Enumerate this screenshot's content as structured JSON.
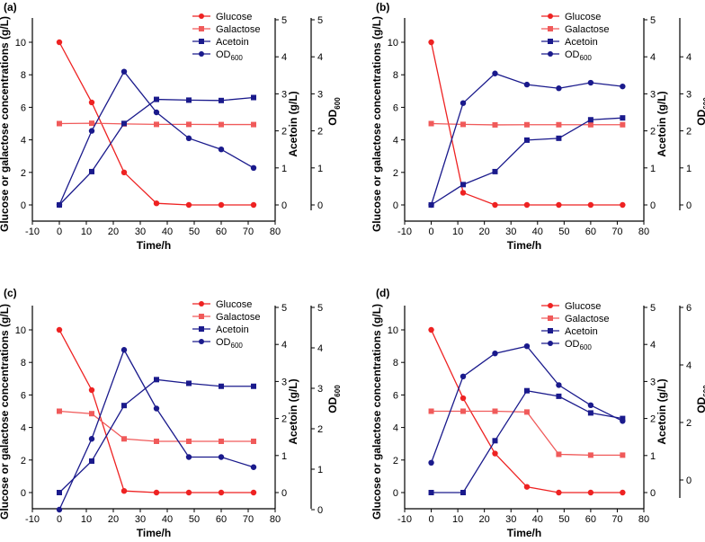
{
  "colors": {
    "red": "#ee2222",
    "pink": "#f05a5a",
    "blue": "#1a1a8c",
    "axis": "#000000"
  },
  "common": {
    "xlabel": "Time/h",
    "ylabel": "Glucose or galactose concentrations (g/L)",
    "acetoin_label": "Acetoin (g/L)",
    "od_label_main": "OD",
    "od_label_sub": "600",
    "legend": [
      "Glucose",
      "Galactose",
      "Acetoin",
      "OD"
    ],
    "legend_od_sub": "600",
    "x_ticks": [
      -10,
      0,
      10,
      20,
      30,
      40,
      50,
      60,
      70,
      80
    ],
    "left_ticks": [
      0,
      2,
      4,
      6,
      8,
      10
    ],
    "acetoin_ticks": [
      0,
      1,
      2,
      3,
      4,
      5
    ]
  },
  "chart_data": [
    {
      "type": "line",
      "panel": "(a)",
      "x": [
        0,
        12,
        24,
        36,
        48,
        60,
        72
      ],
      "xlim": [
        -10,
        80
      ],
      "ylim_left": [
        -0.8,
        11
      ],
      "ylim_acetoin": [
        -0.36,
        4.95
      ],
      "ylim_od": [
        -0.36,
        4.95
      ],
      "od_ticks": [
        0,
        1,
        2,
        3,
        4,
        5
      ],
      "series": [
        {
          "name": "Glucose",
          "axis": "left",
          "marker": "circle",
          "color": "red",
          "values": [
            10,
            6.3,
            2.0,
            0.1,
            0,
            0,
            0
          ]
        },
        {
          "name": "Galactose",
          "axis": "left",
          "marker": "square",
          "color": "pink",
          "values": [
            5,
            5.02,
            4.98,
            4.95,
            4.95,
            4.94,
            4.94
          ]
        },
        {
          "name": "Acetoin",
          "axis": "acetoin",
          "marker": "square",
          "color": "blue",
          "values": [
            0,
            0.9,
            2.2,
            2.85,
            2.83,
            2.82,
            2.9
          ]
        },
        {
          "name": "OD600",
          "axis": "od",
          "marker": "circle",
          "color": "blue",
          "values": [
            0,
            2.0,
            3.6,
            2.5,
            1.8,
            1.5,
            1.0
          ]
        }
      ]
    },
    {
      "type": "line",
      "panel": "(b)",
      "x": [
        0,
        12,
        24,
        36,
        48,
        60,
        72
      ],
      "xlim": [
        -10,
        80
      ],
      "ylim_left": [
        -0.8,
        11
      ],
      "ylim_acetoin": [
        -0.36,
        4.95
      ],
      "ylim_od": [
        -0.36,
        4.95
      ],
      "od_ticks": [
        0,
        1,
        2,
        3,
        4
      ],
      "series": [
        {
          "name": "Glucose",
          "axis": "left",
          "marker": "circle",
          "color": "red",
          "values": [
            10,
            0.75,
            0,
            0,
            0,
            0,
            0
          ]
        },
        {
          "name": "Galactose",
          "axis": "left",
          "marker": "square",
          "color": "pink",
          "values": [
            5,
            4.95,
            4.92,
            4.93,
            4.93,
            4.93,
            4.93
          ]
        },
        {
          "name": "Acetoin",
          "axis": "acetoin",
          "marker": "square",
          "color": "blue",
          "values": [
            0,
            0.55,
            0.9,
            1.75,
            1.8,
            2.3,
            2.35
          ]
        },
        {
          "name": "OD600",
          "axis": "od",
          "marker": "circle",
          "color": "blue",
          "values": [
            0,
            2.75,
            3.55,
            3.25,
            3.15,
            3.3,
            3.2
          ]
        }
      ]
    },
    {
      "type": "line",
      "panel": "(c)",
      "x": [
        0,
        12,
        24,
        36,
        48,
        60,
        72
      ],
      "xlim": [
        -10,
        80
      ],
      "ylim_left": [
        -0.8,
        11
      ],
      "ylim_acetoin": [
        -0.36,
        4.95
      ],
      "ylim_od": [
        0,
        5
      ],
      "od_ticks": [
        0,
        1,
        2,
        3,
        4,
        5
      ],
      "series": [
        {
          "name": "Glucose",
          "axis": "left",
          "marker": "circle",
          "color": "red",
          "values": [
            10,
            6.3,
            0.1,
            0,
            0,
            0,
            0
          ]
        },
        {
          "name": "Galactose",
          "axis": "left",
          "marker": "square",
          "color": "pink",
          "values": [
            5,
            4.85,
            3.3,
            3.15,
            3.15,
            3.15,
            3.15
          ]
        },
        {
          "name": "Acetoin",
          "axis": "acetoin",
          "marker": "square",
          "color": "blue",
          "values": [
            0,
            0.85,
            2.35,
            3.05,
            2.95,
            2.87,
            2.87
          ]
        },
        {
          "name": "OD600",
          "axis": "od",
          "marker": "circle",
          "color": "blue",
          "values": [
            0,
            1.75,
            3.95,
            2.5,
            1.3,
            1.3,
            1.05
          ]
        }
      ]
    },
    {
      "type": "line",
      "panel": "(d)",
      "x": [
        0,
        12,
        24,
        36,
        48,
        60,
        72
      ],
      "xlim": [
        -10,
        80
      ],
      "ylim_left": [
        -0.8,
        11
      ],
      "ylim_acetoin": [
        -0.36,
        4.95
      ],
      "ylim_od": [
        -0.9,
        6
      ],
      "od_ticks": [
        0,
        2,
        4,
        6
      ],
      "series": [
        {
          "name": "Glucose",
          "axis": "left",
          "marker": "circle",
          "color": "red",
          "values": [
            10,
            5.8,
            2.4,
            0.35,
            0,
            0,
            0
          ]
        },
        {
          "name": "Galactose",
          "axis": "left",
          "marker": "square",
          "color": "pink",
          "values": [
            5,
            5,
            5,
            4.95,
            2.35,
            2.3,
            2.3
          ]
        },
        {
          "name": "Acetoin",
          "axis": "acetoin",
          "marker": "square",
          "color": "blue",
          "values": [
            0,
            0,
            1.4,
            2.75,
            2.6,
            2.15,
            2.0
          ]
        },
        {
          "name": "OD600",
          "axis": "od",
          "marker": "circle",
          "color": "blue",
          "values": [
            0.6,
            3.6,
            4.4,
            4.65,
            3.3,
            2.6,
            2.05
          ]
        }
      ]
    }
  ]
}
